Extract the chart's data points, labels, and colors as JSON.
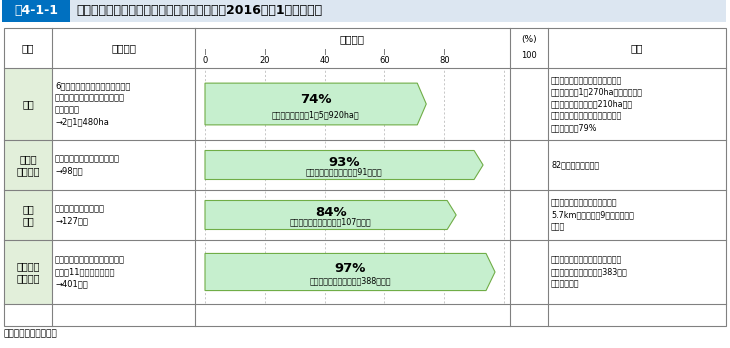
{
  "title_box_label": "围4-1-1",
  "title_main": "農地・農業用施設等の復旧状況（平成２８（2016）年1月末時点）",
  "rows": [
    {
      "item": "農地",
      "damage": "6県（青森県、岩手県、宮城県、\n福島県、茨城県、千葉県）の津\n波被災農地\n→2万1，480ha",
      "pct": 74,
      "pct_label": "74%",
      "sub_label": "（営農再開可能：1万5，920ha）",
      "note": "農地転用が行われたもの（見込み\nを含む。）が1，270haあり、これを\n除く復旧対象農地２万210haに対\nする営農再開が可能と見込まれる\n農地の割合は79%"
    },
    {
      "item": "主要な\n排水機場",
      "damage": "復旧が必要な主要な排水機場\n→98か所",
      "pct": 93,
      "pct_label": "93%",
      "sub_label": "（復旧完了又は実施中：91か所）",
      "note": "82か所で復旧が完了"
    },
    {
      "item": "農地\n海岸",
      "damage": "復旧が必要な農地海岸\n→127地区",
      "pct": 84,
      "pct_label": "84%",
      "sub_label": "（復旧完了又は実施中：107地区）",
      "note": "太平洋に面する直轄代行区間約\n5.7kmのうち、約9割の堕防復旧\nが完了"
    },
    {
      "item": "農業集落\n排水施設",
      "damage": "被害のあった青森県から長野県\nまでの11県の被災地区数\n→401地区",
      "pct": 97,
      "pct_label": "97%",
      "sub_label": "（復旧完了又は実施中：388地区）",
      "note": "原発事故による避難指示区域内や\n津波被災地区等を除き、383地区\nで復旧が完了"
    }
  ],
  "source": "資料：農林水産省作成",
  "header_item": "項目",
  "header_damage": "被害状況",
  "header_progress": "進捗状況",
  "header_pct": "(%)",
  "header_note": "備考",
  "ticks": [
    0,
    20,
    40,
    60,
    80
  ],
  "pct_100": "100",
  "colors": {
    "title_box_bg": "#0070c0",
    "title_box_text": "#ffffff",
    "title_bg": "#dce6f1",
    "row_item_bg": "#e2efda",
    "progress_fill": "#c6efce",
    "progress_border": "#70ad47",
    "border": "#808080",
    "dashed": "#b0b0b0"
  }
}
